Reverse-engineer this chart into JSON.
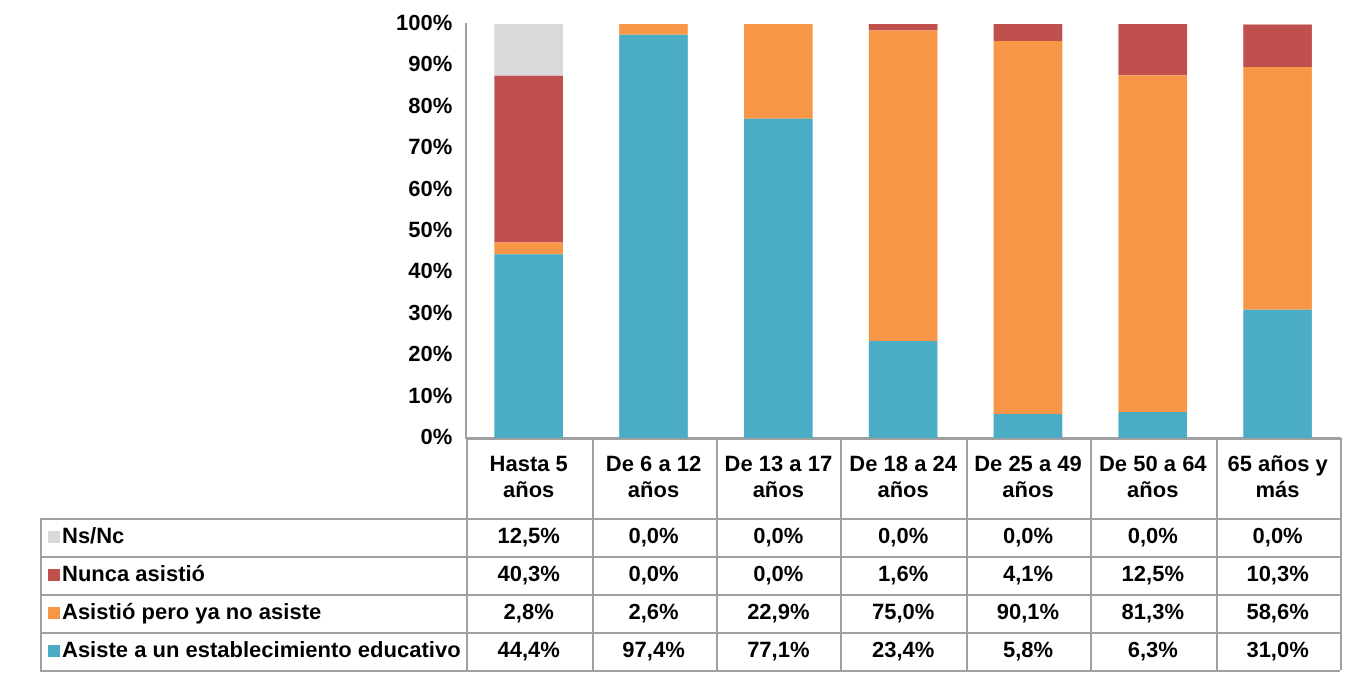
{
  "chart_data": {
    "type": "bar",
    "stacked": true,
    "legend": "bottom left",
    "categories": [
      "Hasta 5 años",
      "De 6 a 12 años",
      "De 13 a 17 años",
      "De 18 a 24 años",
      "De 25 a 49 años",
      "De 50 a 64 años",
      "65 años y más"
    ],
    "ylim": [
      0,
      100
    ],
    "yticks": [
      {
        "value": 0,
        "label": "0%"
      },
      {
        "value": 10,
        "label": "10%"
      },
      {
        "value": 20,
        "label": "20%"
      },
      {
        "value": 30,
        "label": "30%"
      },
      {
        "value": 40,
        "label": "40%"
      },
      {
        "value": 50,
        "label": "50%"
      },
      {
        "value": 60,
        "label": "60%"
      },
      {
        "value": 70,
        "label": "70%"
      },
      {
        "value": 80,
        "label": "80%"
      },
      {
        "value": 90,
        "label": "90%"
      },
      {
        "value": 100,
        "label": "100%"
      }
    ],
    "series": [
      {
        "name": "Asiste a un establecimiento educativo",
        "color": "#4bacc6",
        "values": [
          44.4,
          97.4,
          77.1,
          23.4,
          5.8,
          6.3,
          31.0
        ],
        "value_labels": [
          "44,4%",
          "97,4%",
          "77,1%",
          "23,4%",
          "5,8%",
          "6,3%",
          "31,0%"
        ]
      },
      {
        "name": "Asistió pero ya no asiste",
        "color": "#f79646",
        "values": [
          2.8,
          2.6,
          22.9,
          75.0,
          90.1,
          81.3,
          58.6
        ],
        "value_labels": [
          "2,8%",
          "2,6%",
          "22,9%",
          "75,0%",
          "90,1%",
          "81,3%",
          "58,6%"
        ]
      },
      {
        "name": "Nunca asistió",
        "color": "#c0504d",
        "values": [
          40.3,
          0.0,
          0.0,
          1.6,
          4.1,
          12.5,
          10.3
        ],
        "value_labels": [
          "40,3%",
          "0,0%",
          "0,0%",
          "1,6%",
          "4,1%",
          "12,5%",
          "10,3%"
        ]
      },
      {
        "name": "Ns/Nc",
        "color": "#d9d9d9",
        "values": [
          12.5,
          0.0,
          0.0,
          0.0,
          0.0,
          0.0,
          0.0
        ],
        "value_labels": [
          "12,5%",
          "0,0%",
          "0,0%",
          "0,0%",
          "0,0%",
          "0,0%",
          "0,0%"
        ]
      }
    ]
  }
}
